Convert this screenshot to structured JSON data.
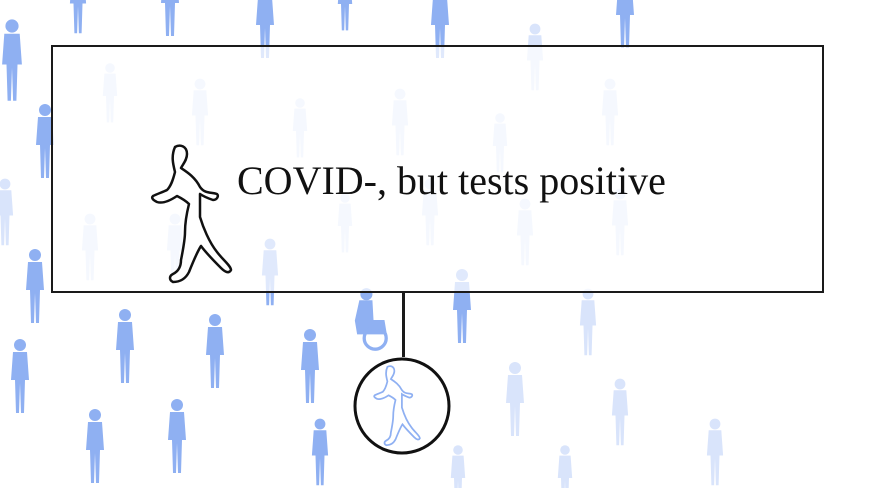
{
  "callout": {
    "label": "COVID-, but tests positive"
  },
  "icons": {
    "person": "walking-person-outline-icon",
    "crowd": "crowd-silhouette-icon"
  },
  "colors": {
    "crowd_dark": "#8fb0f2",
    "crowd_light": "#d9e4fb",
    "outline": "#111111",
    "highlight_fill": "#ffffff"
  }
}
